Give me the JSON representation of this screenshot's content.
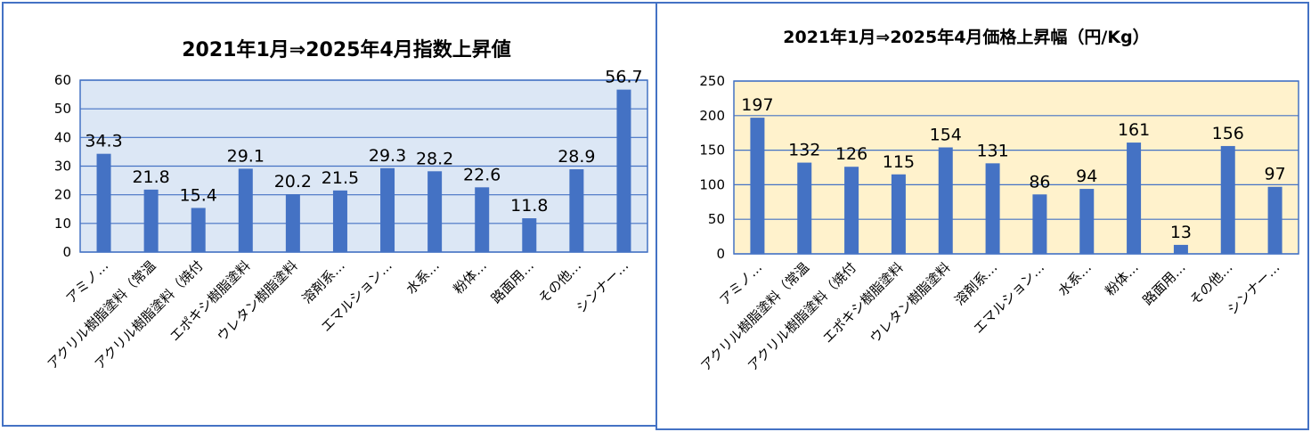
{
  "chart_data": [
    {
      "type": "bar",
      "title": "2021年1月⇒2025年4月指数上昇値",
      "categories": [
        "アミノ…",
        "アクリル樹脂塗料（常温",
        "アクリル樹脂塗料（焼付",
        "エポキシ樹脂塗料",
        "ウレタン樹脂塗料",
        "溶剤系…",
        "エマルション…",
        "水系…",
        "粉体…",
        "路面用…",
        "その他…",
        "シンナー…"
      ],
      "values": [
        34.3,
        21.8,
        15.4,
        29.1,
        20.2,
        21.5,
        29.3,
        28.2,
        22.6,
        11.8,
        28.9,
        56.7
      ],
      "data_labels": [
        "34.3",
        "21.8",
        "15.4",
        "29.1",
        "20.2",
        "21.5",
        "29.3",
        "28.2",
        "22.6",
        "11.8",
        "28.9",
        "56.7"
      ],
      "ylim": [
        0,
        60
      ],
      "yticks": [
        "0",
        "10",
        "20",
        "30",
        "40",
        "50",
        "60"
      ],
      "grid": true,
      "colors": {
        "bar": "#4472c4",
        "plot_bg": "#dce7f5",
        "grid": "#4472c4",
        "border": "#4472c4"
      }
    },
    {
      "type": "bar",
      "title": "2021年1月⇒2025年4月価格上昇幅（円/Kg）",
      "categories": [
        "アミノ…",
        "アクリル樹脂塗料（常温",
        "アクリル樹脂塗料（焼付",
        "エポキシ樹脂塗料",
        "ウレタン樹脂塗料",
        "溶剤系…",
        "エマルション…",
        "水系…",
        "粉体…",
        "路面用…",
        "その他…",
        "シンナー…"
      ],
      "values": [
        197,
        132,
        126,
        115,
        154,
        131,
        86,
        94,
        161,
        13,
        156,
        97
      ],
      "data_labels": [
        "197",
        "132",
        "126",
        "115",
        "154",
        "131",
        "86",
        "94",
        "161",
        "13",
        "156",
        "97"
      ],
      "ylim": [
        0,
        250
      ],
      "yticks": [
        "0",
        "50",
        "100",
        "150",
        "200",
        "250"
      ],
      "grid": true,
      "colors": {
        "bar": "#4472c4",
        "plot_bg": "#fff2cc",
        "grid": "#4472c4",
        "border": "#4472c4"
      }
    }
  ]
}
